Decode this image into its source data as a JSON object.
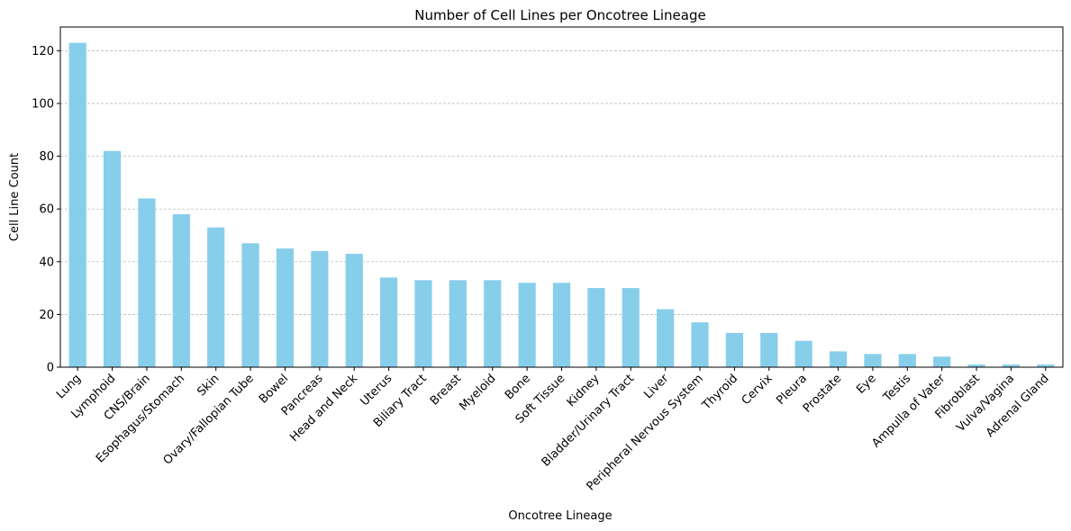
{
  "chart_data": {
    "type": "bar",
    "title": "Number of Cell Lines per Oncotree Lineage",
    "xlabel": "Oncotree Lineage",
    "ylabel": "Cell Line Count",
    "ylim": [
      0,
      129
    ],
    "yticks": [
      0,
      20,
      40,
      60,
      80,
      100,
      120
    ],
    "grid": "y-dashed",
    "bar_color": "#87CEEB",
    "categories": [
      "Lung",
      "Lymphoid",
      "CNS/Brain",
      "Esophagus/Stomach",
      "Skin",
      "Ovary/Fallopian Tube",
      "Bowel",
      "Pancreas",
      "Head and Neck",
      "Uterus",
      "Biliary Tract",
      "Breast",
      "Myeloid",
      "Bone",
      "Soft Tissue",
      "Kidney",
      "Bladder/Urinary Tract",
      "Liver",
      "Peripheral Nervous System",
      "Thyroid",
      "Cervix",
      "Pleura",
      "Prostate",
      "Eye",
      "Testis",
      "Ampulla of Vater",
      "Fibroblast",
      "Vulva/Vagina",
      "Adrenal Gland"
    ],
    "values": [
      123,
      82,
      64,
      58,
      53,
      47,
      45,
      44,
      43,
      34,
      33,
      33,
      33,
      32,
      32,
      30,
      30,
      22,
      17,
      13,
      13,
      10,
      6,
      5,
      5,
      4,
      1,
      1,
      1
    ]
  }
}
